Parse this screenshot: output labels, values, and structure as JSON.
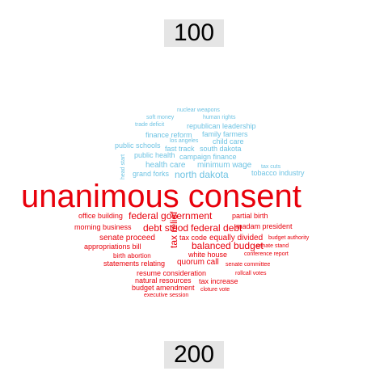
{
  "top_label": "100",
  "bottom_label": "200",
  "colors": {
    "top_group": "#6ec3e3",
    "bottom_group": "#e8000b"
  },
  "words": [
    {
      "text": "nuclear weapons",
      "group": "top",
      "weight": 1
    },
    {
      "text": "soft money",
      "group": "top",
      "weight": 1
    },
    {
      "text": "human rights",
      "group": "top",
      "weight": 1
    },
    {
      "text": "trade deficit",
      "group": "top",
      "weight": 1
    },
    {
      "text": "republican leadership",
      "group": "top",
      "weight": 2
    },
    {
      "text": "finance reform",
      "group": "top",
      "weight": 2
    },
    {
      "text": "family farmers",
      "group": "top",
      "weight": 2
    },
    {
      "text": "los angeles",
      "group": "top",
      "weight": 1
    },
    {
      "text": "child care",
      "group": "top",
      "weight": 2
    },
    {
      "text": "public schools",
      "group": "top",
      "weight": 2
    },
    {
      "text": "fast track",
      "group": "top",
      "weight": 2
    },
    {
      "text": "south dakota",
      "group": "top",
      "weight": 2
    },
    {
      "text": "public health",
      "group": "top",
      "weight": 2
    },
    {
      "text": "campaign finance",
      "group": "top",
      "weight": 2
    },
    {
      "text": "health care",
      "group": "top",
      "weight": 3
    },
    {
      "text": "minimum wage",
      "group": "top",
      "weight": 3
    },
    {
      "text": "tax cuts",
      "group": "top",
      "weight": 1
    },
    {
      "text": "head start",
      "group": "top",
      "weight": 1
    },
    {
      "text": "grand forks",
      "group": "top",
      "weight": 2
    },
    {
      "text": "north dakota",
      "group": "top",
      "weight": 4
    },
    {
      "text": "tobacco industry",
      "group": "top",
      "weight": 2
    },
    {
      "text": "unanimous consent",
      "group": "bottom",
      "weight": 10
    },
    {
      "text": "office building",
      "group": "bottom",
      "weight": 2
    },
    {
      "text": "federal government",
      "group": "bottom",
      "weight": 4
    },
    {
      "text": "partial birth",
      "group": "bottom",
      "weight": 2
    },
    {
      "text": "morning business",
      "group": "bottom",
      "weight": 2
    },
    {
      "text": "debt stood",
      "group": "bottom",
      "weight": 4
    },
    {
      "text": "federal debt",
      "group": "bottom",
      "weight": 4
    },
    {
      "text": "madam president",
      "group": "bottom",
      "weight": 2
    },
    {
      "text": "senate proceed",
      "group": "bottom",
      "weight": 3
    },
    {
      "text": "tax relief",
      "group": "bottom",
      "weight": 4
    },
    {
      "text": "tax code",
      "group": "bottom",
      "weight": 2
    },
    {
      "text": "equally divided",
      "group": "bottom",
      "weight": 3
    },
    {
      "text": "budget authority",
      "group": "bottom",
      "weight": 1
    },
    {
      "text": "appropriations bill",
      "group": "bottom",
      "weight": 2
    },
    {
      "text": "balanced budget",
      "group": "bottom",
      "weight": 4
    },
    {
      "text": "senate stand",
      "group": "bottom",
      "weight": 1
    },
    {
      "text": "birth abortion",
      "group": "bottom",
      "weight": 2
    },
    {
      "text": "white house",
      "group": "bottom",
      "weight": 2
    },
    {
      "text": "conference report",
      "group": "bottom",
      "weight": 1
    },
    {
      "text": "statements relating",
      "group": "bottom",
      "weight": 2
    },
    {
      "text": "quorum call",
      "group": "bottom",
      "weight": 3
    },
    {
      "text": "senate committee",
      "group": "bottom",
      "weight": 1
    },
    {
      "text": "resume consideration",
      "group": "bottom",
      "weight": 2
    },
    {
      "text": "rollcall votes",
      "group": "bottom",
      "weight": 1
    },
    {
      "text": "natural resources",
      "group": "bottom",
      "weight": 2
    },
    {
      "text": "tax increase",
      "group": "bottom",
      "weight": 2
    },
    {
      "text": "budget amendment",
      "group": "bottom",
      "weight": 2
    },
    {
      "text": "cloture vote",
      "group": "bottom",
      "weight": 1
    },
    {
      "text": "executive session",
      "group": "bottom",
      "weight": 1
    }
  ]
}
